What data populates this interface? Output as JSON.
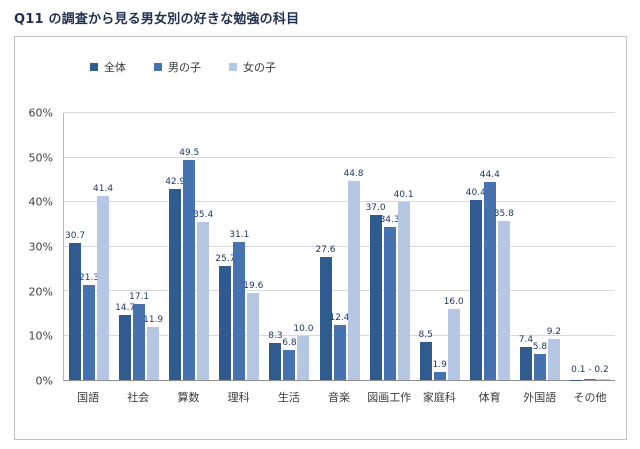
{
  "chart_data": {
    "type": "bar",
    "title": "Q11 の調査から見る男女別の好きな勉強の科目",
    "categories": [
      "国語",
      "社会",
      "算数",
      "理科",
      "生活",
      "音楽",
      "図画工作",
      "家庭科",
      "体育",
      "外国語",
      "その他"
    ],
    "series": [
      {
        "name": "全体",
        "color": "#2f5b8f",
        "values": [
          30.7,
          14.7,
          42.9,
          25.7,
          8.3,
          27.6,
          37.0,
          8.5,
          40.4,
          7.4,
          0.1
        ]
      },
      {
        "name": "男の子",
        "color": "#4673b0",
        "values": [
          21.3,
          17.1,
          49.5,
          31.1,
          6.8,
          12.4,
          34.3,
          1.9,
          44.4,
          5.8,
          0.2
        ]
      },
      {
        "name": "女の子",
        "color": "#b5c7e3",
        "values": [
          41.4,
          11.9,
          35.4,
          19.6,
          10.0,
          44.8,
          40.1,
          16.0,
          35.8,
          9.2,
          0.2
        ]
      }
    ],
    "ylim": [
      0,
      60
    ],
    "ytick_step": 10,
    "ytick_labels": [
      "0%",
      "10%",
      "20%",
      "30%",
      "40%",
      "50%",
      "60%"
    ],
    "grid": true,
    "legend_position": "top",
    "annotations": [
      {
        "category": "その他",
        "text": "0.1 - 0.2"
      }
    ]
  }
}
